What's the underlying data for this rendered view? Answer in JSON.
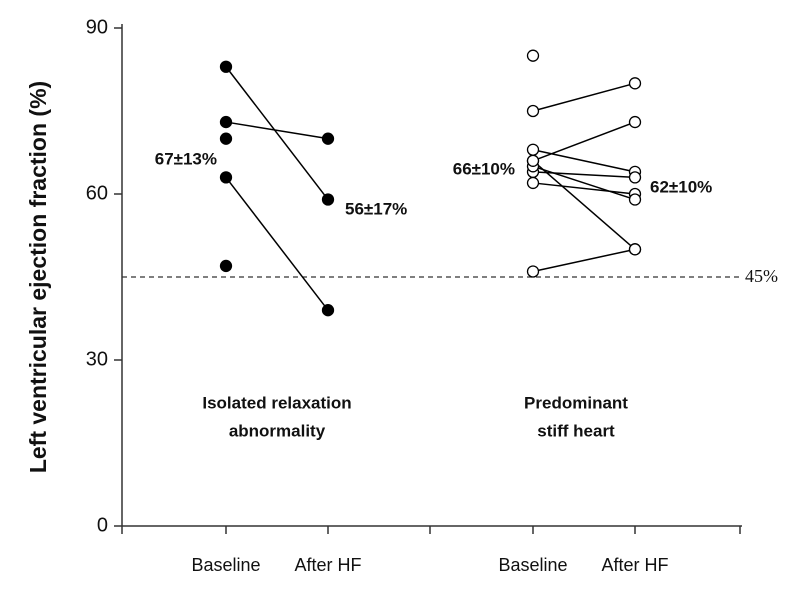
{
  "chart_data": {
    "type": "paired_dot",
    "y_label": "Left ventricular ejection fraction (%)",
    "ylim": [
      0,
      90
    ],
    "yticks": [
      0,
      30,
      60,
      90
    ],
    "reference_line": {
      "value": 45,
      "label": "45%"
    },
    "groups": [
      {
        "label": [
          "Isolated relaxation",
          "abnormality"
        ],
        "categories": [
          "Baseline",
          "After HF"
        ],
        "marker": "filled",
        "color": "#000000",
        "annotations": [
          "67±13%",
          "56±17%"
        ],
        "series": [
          {
            "values": [
              83,
              59
            ]
          },
          {
            "values": [
              73,
              70
            ]
          },
          {
            "values": [
              63,
              39
            ]
          },
          {
            "values": [
              70,
              null
            ]
          },
          {
            "values": [
              47,
              null
            ]
          }
        ]
      },
      {
        "label": [
          "Predominant",
          "stiff heart"
        ],
        "categories": [
          "Baseline",
          "After HF"
        ],
        "marker": "open",
        "color": "#000000",
        "annotations": [
          "66±10%",
          "62±10%"
        ],
        "series": [
          {
            "values": [
              85,
              null
            ]
          },
          {
            "values": [
              75,
              80
            ]
          },
          {
            "values": [
              66,
              73
            ]
          },
          {
            "values": [
              68,
              64
            ]
          },
          {
            "values": [
              64,
              63
            ]
          },
          {
            "values": [
              62,
              60
            ]
          },
          {
            "values": [
              65,
              59
            ]
          },
          {
            "values": [
              66,
              50
            ]
          },
          {
            "values": [
              46,
              50
            ]
          }
        ]
      }
    ]
  }
}
